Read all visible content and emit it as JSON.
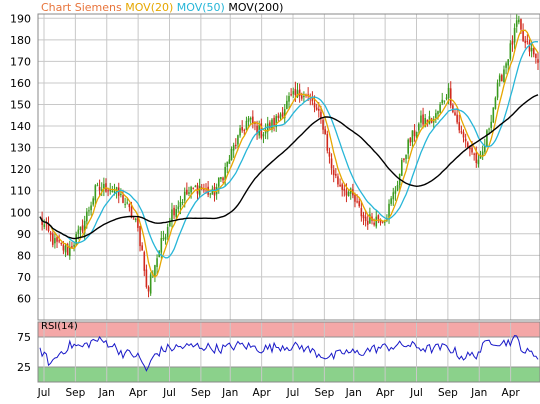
{
  "colors": {
    "title": "#e8743b",
    "mov20": "#e6a700",
    "mov50": "#27b6d8",
    "mov200": "#000000",
    "up": "#3a9a1e",
    "down": "#d12a1e",
    "rsi": "#1a1ac8",
    "rsi_high_band": "#f4a7a7",
    "rsi_low_band": "#8bd18b",
    "grid": "#c8c8c8",
    "plot_border": "#888888"
  },
  "legend": {
    "title": "Chart Siemens",
    "mov20": "MOV(20)",
    "mov50": "MOV(50)",
    "mov200": "MOV(200)"
  },
  "rsi_panel": {
    "title": "RSI(14)",
    "ticks": [
      "75",
      "25"
    ],
    "levels": [
      75,
      25
    ],
    "ylim": [
      0,
      100
    ]
  },
  "chart_data": {
    "type": "line",
    "title": "Chart Siemens",
    "xlabel": "",
    "ylabel": "",
    "ylim": [
      50,
      192
    ],
    "yticks": [
      60,
      70,
      80,
      90,
      100,
      110,
      120,
      130,
      140,
      150,
      160,
      170,
      180,
      190
    ],
    "grid": true,
    "x_tick_labels": [
      "Jul",
      "Sep",
      "Jan",
      "Apr",
      "Jul",
      "Sep",
      "Jan",
      "Apr",
      "Jul",
      "Sep",
      "Jan",
      "Apr",
      "Jul",
      "Sep",
      "Jan",
      "Apr"
    ],
    "price_keypoints": [
      [
        0,
        97
      ],
      [
        4,
        86
      ],
      [
        8,
        82
      ],
      [
        12,
        92
      ],
      [
        16,
        110
      ],
      [
        20,
        112
      ],
      [
        24,
        106
      ],
      [
        28,
        94
      ],
      [
        30,
        78
      ],
      [
        31,
        60
      ],
      [
        32,
        70
      ],
      [
        34,
        80
      ],
      [
        38,
        100
      ],
      [
        42,
        108
      ],
      [
        46,
        112
      ],
      [
        50,
        108
      ],
      [
        53,
        118
      ],
      [
        56,
        130
      ],
      [
        60,
        143
      ],
      [
        64,
        137
      ],
      [
        68,
        142
      ],
      [
        72,
        152
      ],
      [
        76,
        156
      ],
      [
        79,
        150
      ],
      [
        82,
        140
      ],
      [
        84,
        122
      ],
      [
        86,
        114
      ],
      [
        90,
        108
      ],
      [
        94,
        96
      ],
      [
        96,
        97
      ],
      [
        100,
        98
      ],
      [
        103,
        112
      ],
      [
        106,
        130
      ],
      [
        110,
        142
      ],
      [
        114,
        143
      ],
      [
        118,
        157
      ],
      [
        120,
        145
      ],
      [
        122,
        135
      ],
      [
        125,
        128
      ],
      [
        127,
        121
      ],
      [
        129,
        134
      ],
      [
        132,
        156
      ],
      [
        135,
        171
      ],
      [
        137,
        181
      ],
      [
        138,
        189
      ],
      [
        140,
        178
      ],
      [
        142,
        175
      ],
      [
        144,
        169
      ]
    ],
    "series": [
      {
        "name": "MOV(20)"
      },
      {
        "name": "MOV(50)"
      },
      {
        "name": "MOV(200)"
      }
    ],
    "rsi": {
      "name": "RSI(14)",
      "levels": [
        75,
        25
      ],
      "keypoints": [
        [
          0,
          55
        ],
        [
          3,
          30
        ],
        [
          6,
          50
        ],
        [
          9,
          62
        ],
        [
          12,
          58
        ],
        [
          16,
          70
        ],
        [
          20,
          65
        ],
        [
          24,
          48
        ],
        [
          28,
          45
        ],
        [
          30,
          28
        ],
        [
          31,
          18
        ],
        [
          33,
          45
        ],
        [
          36,
          55
        ],
        [
          40,
          58
        ],
        [
          46,
          60
        ],
        [
          52,
          55
        ],
        [
          58,
          62
        ],
        [
          64,
          55
        ],
        [
          70,
          60
        ],
        [
          76,
          58
        ],
        [
          80,
          48
        ],
        [
          84,
          40
        ],
        [
          88,
          50
        ],
        [
          92,
          48
        ],
        [
          96,
          55
        ],
        [
          100,
          58
        ],
        [
          106,
          62
        ],
        [
          112,
          55
        ],
        [
          118,
          58
        ],
        [
          122,
          42
        ],
        [
          126,
          45
        ],
        [
          130,
          70
        ],
        [
          134,
          65
        ],
        [
          138,
          72
        ],
        [
          140,
          50
        ],
        [
          144,
          45
        ]
      ]
    }
  }
}
